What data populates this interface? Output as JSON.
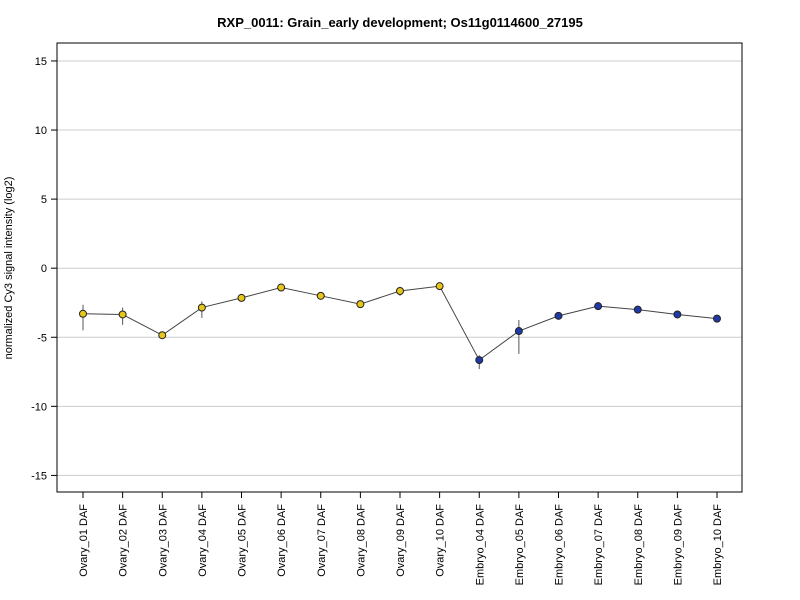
{
  "chart_data": {
    "type": "line",
    "title": "RXP_0011: Grain_early development; Os11g0114600_27195",
    "xlabel": "",
    "ylabel": "normalized Cy3 signal intensity (log2)",
    "ylim": [
      -16.2,
      16.3
    ],
    "yticks": [
      15,
      10,
      5,
      0,
      -5,
      -10,
      -15
    ],
    "grid": true,
    "categories": [
      "Ovary_01 DAF",
      "Ovary_02 DAF",
      "Ovary_03 DAF",
      "Ovary_04 DAF",
      "Ovary_05 DAF",
      "Ovary_06 DAF",
      "Ovary_07 DAF",
      "Ovary_08 DAF",
      "Ovary_09 DAF",
      "Ovary_10 DAF",
      "Embryo_04 DAF",
      "Embryo_05 DAF",
      "Embryo_06 DAF",
      "Embryo_07 DAF",
      "Embryo_08 DAF",
      "Embryo_09 DAF",
      "Embryo_10 DAF"
    ],
    "values": [
      -3.3,
      -3.35,
      -4.85,
      -2.85,
      -2.15,
      -1.4,
      -2.0,
      -2.6,
      -1.65,
      -1.3,
      -6.65,
      -4.55,
      -3.45,
      -2.75,
      -3.0,
      -3.35,
      -3.65
    ],
    "error_low": [
      -4.5,
      -4.1,
      -4.95,
      -3.6,
      -2.3,
      -1.5,
      -2.1,
      -2.7,
      -2.0,
      -1.4,
      -7.3,
      -6.2,
      -3.7,
      -2.9,
      -3.1,
      -3.45,
      -3.75
    ],
    "error_high": [
      -2.65,
      -2.85,
      -4.7,
      -2.4,
      -2.0,
      -1.3,
      -1.9,
      -2.5,
      -1.35,
      -1.2,
      -6.3,
      -3.75,
      -3.2,
      -2.6,
      -2.9,
      -3.25,
      -3.55
    ],
    "point_colors": [
      "#e6c619",
      "#e6c619",
      "#e6c619",
      "#e6c619",
      "#e6c619",
      "#e6c619",
      "#e6c619",
      "#e6c619",
      "#e6c619",
      "#e6c619",
      "#1f3aa8",
      "#1f3aa8",
      "#1f3aa8",
      "#1f3aa8",
      "#1f3aa8",
      "#1f3aa8",
      "#1f3aa8"
    ],
    "line_color": "#444444",
    "grid_color": "#cccccc"
  }
}
